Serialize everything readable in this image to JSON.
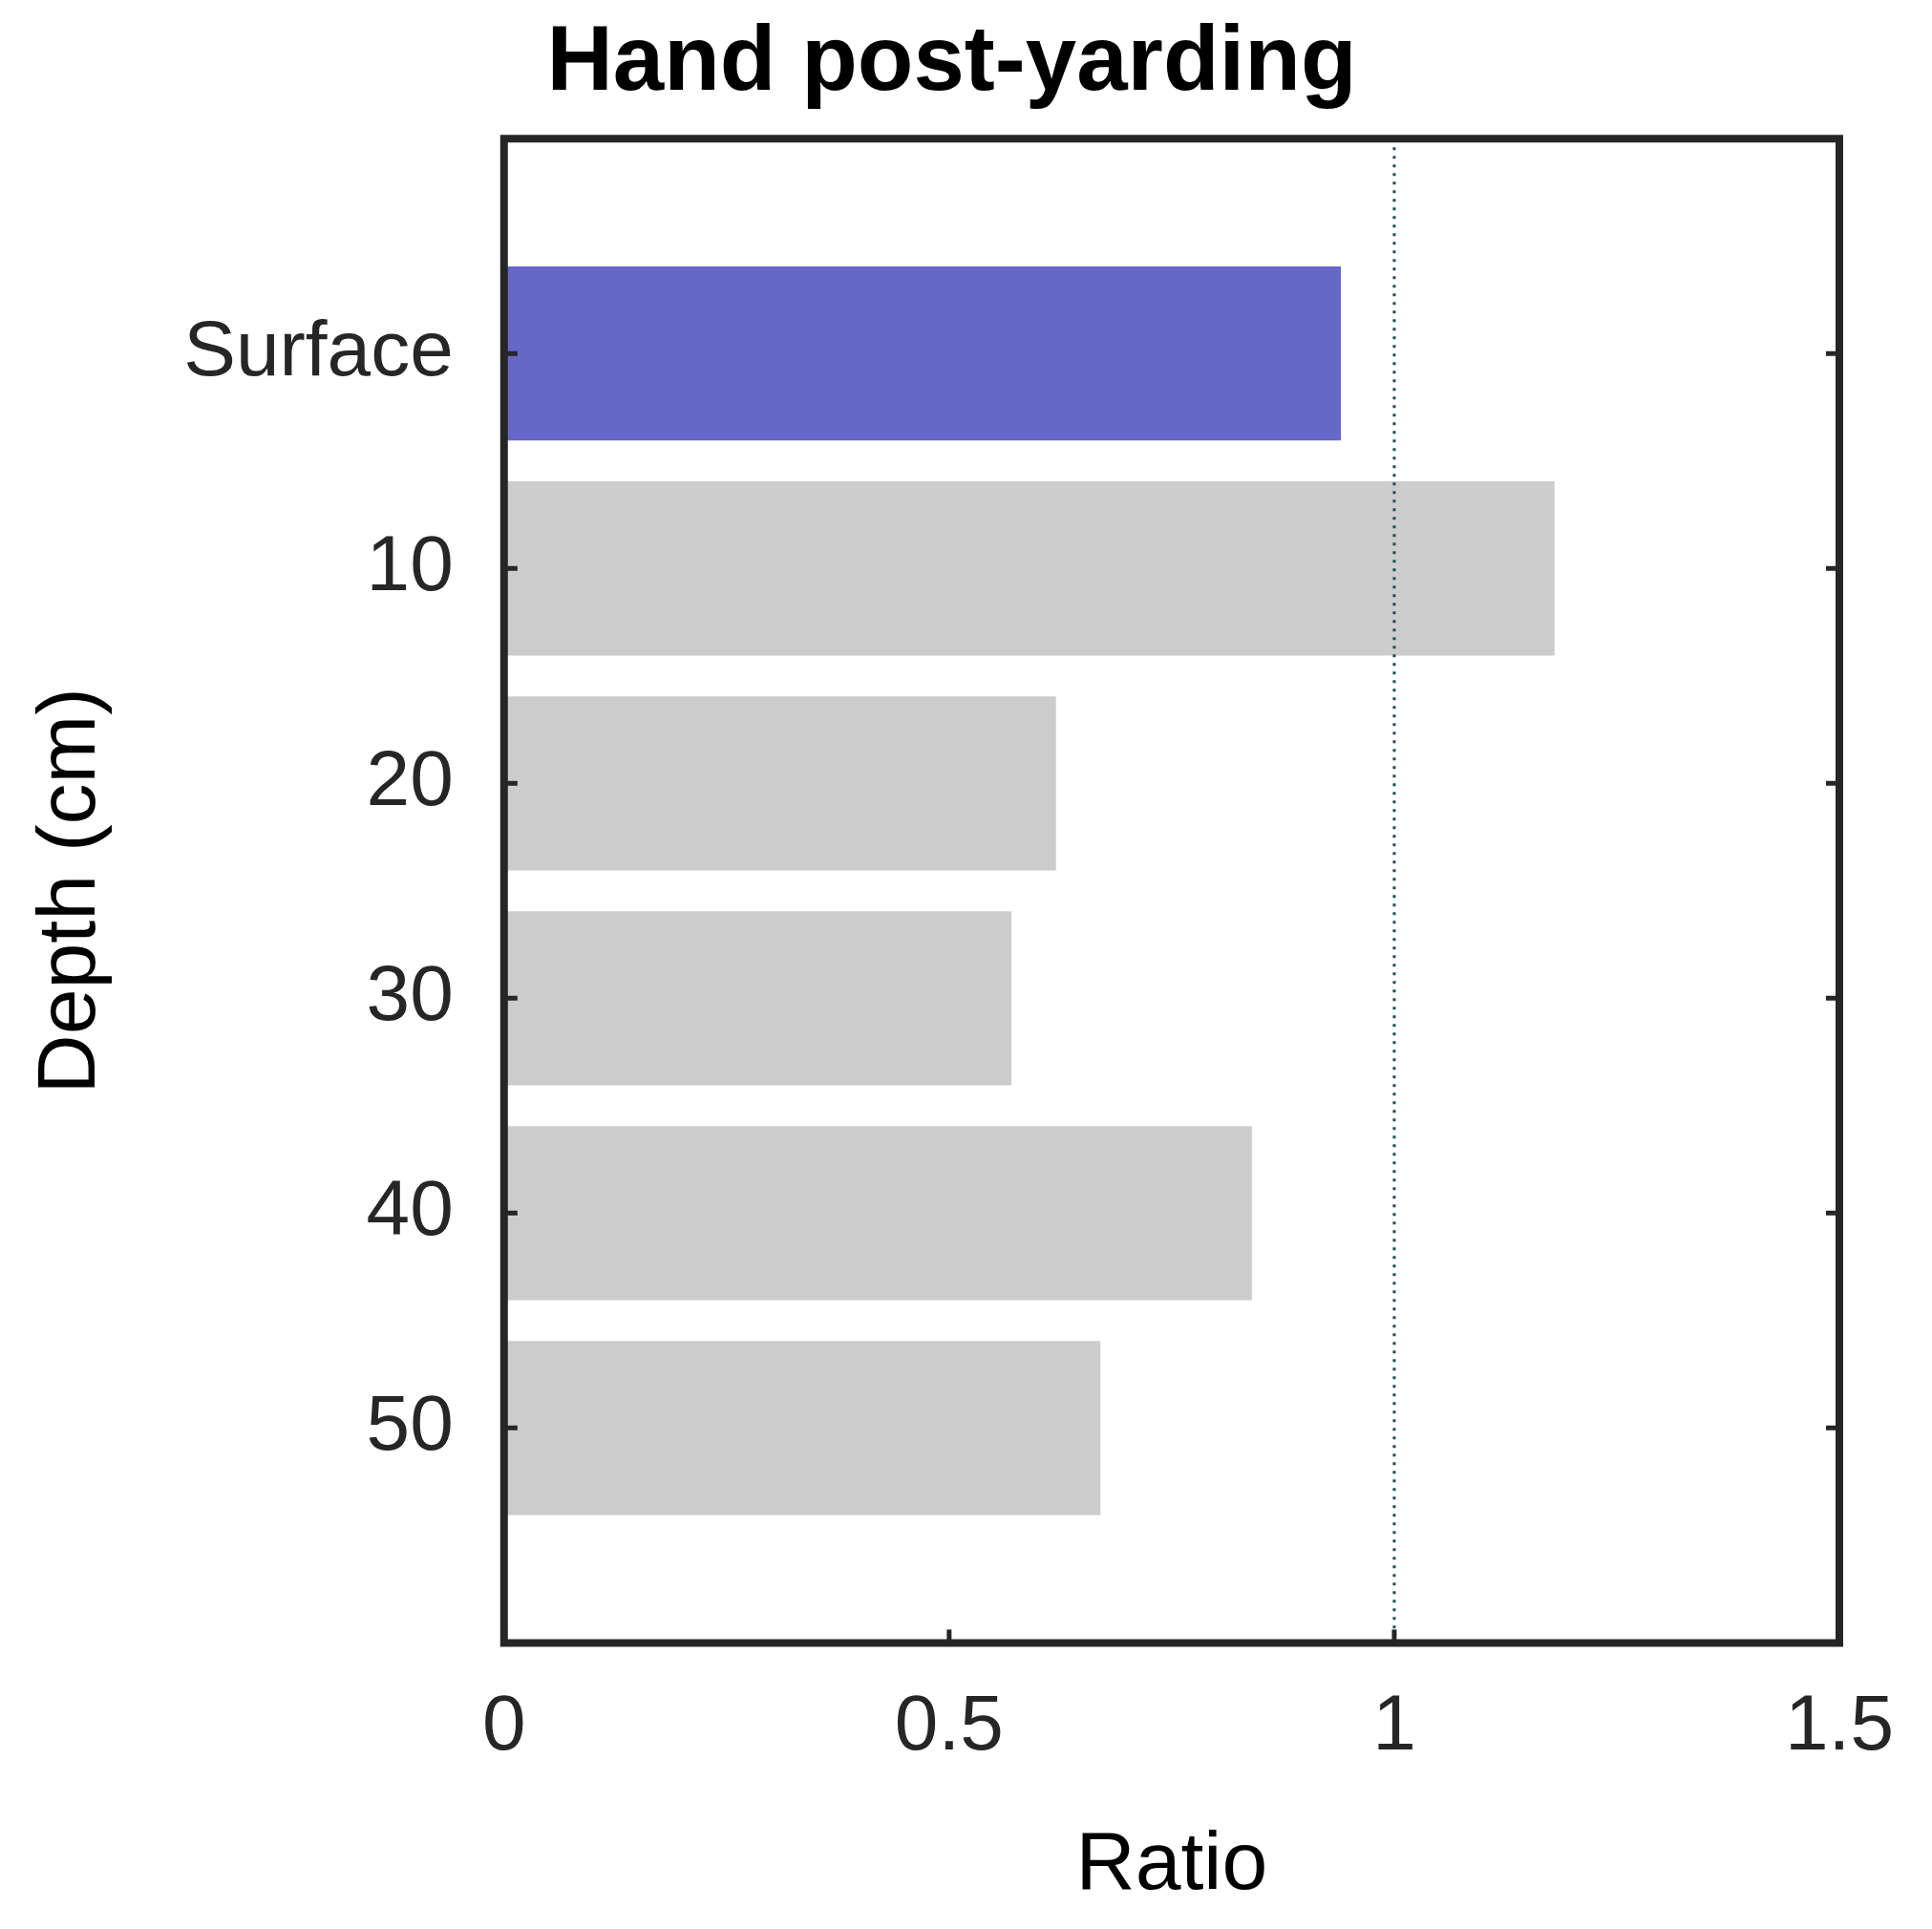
{
  "chart_data": {
    "type": "bar",
    "orientation": "horizontal",
    "title": "Hand post-yarding",
    "xlabel": "Ratio",
    "ylabel": "Depth (cm)",
    "categories": [
      "Surface",
      "10",
      "20",
      "30",
      "40",
      "50"
    ],
    "values": [
      0.94,
      1.18,
      0.62,
      0.57,
      0.84,
      0.67
    ],
    "colors": [
      "#6767c8",
      "#cccccc",
      "#cccccc",
      "#cccccc",
      "#cccccc",
      "#cccccc"
    ],
    "xlim": [
      0,
      1.5
    ],
    "xticks": [
      0,
      0.5,
      1,
      1.5
    ],
    "ref_lines": [
      {
        "axis": "x",
        "value": 1,
        "color": "#1f4f4f",
        "line_style": "dotted"
      }
    ],
    "grid": false,
    "legend": false
  }
}
